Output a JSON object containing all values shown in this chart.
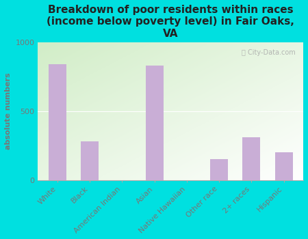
{
  "categories": [
    "White",
    "Black",
    "American Indian",
    "Asian",
    "Native Hawaiian",
    "Other race",
    "2+ races",
    "Hispanic"
  ],
  "values": [
    840,
    280,
    0,
    830,
    0,
    150,
    310,
    200
  ],
  "bar_color": "#c9aed6",
  "title": "Breakdown of poor residents within races\n(income below poverty level) in Fair Oaks,\nVA",
  "ylabel": "absolute numbers",
  "ylim": [
    0,
    1000
  ],
  "yticks": [
    0,
    500,
    1000
  ],
  "background_color": "#00e0e0",
  "plot_bg_topleft": "#d6ecd2",
  "plot_bg_right": "#f8fef8",
  "plot_bg_bottom": "#ffffff",
  "title_fontsize": 11,
  "label_fontsize": 8,
  "tick_color": "#777777",
  "ylabel_color": "#777777",
  "watermark": "City-Data.com"
}
